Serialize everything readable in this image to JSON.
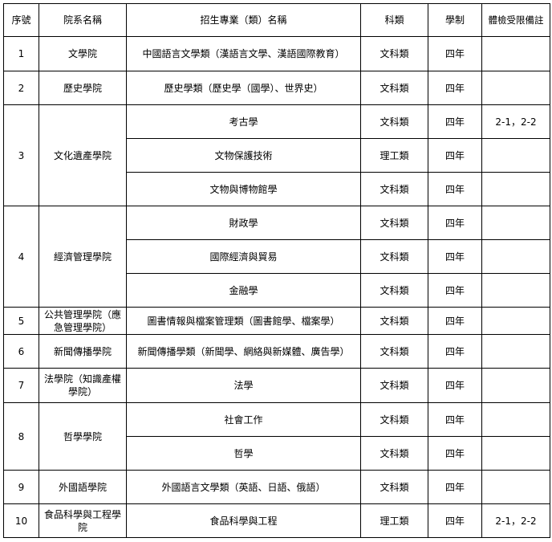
{
  "headers": [
    "序號",
    "院系名稱",
    "招生專業（類）名稱",
    "科類",
    "學制",
    "體檢受限備註"
  ],
  "groups": [
    {
      "no": "1",
      "school": "文學院",
      "majors": [
        {
          "name": "中國語言文學類（漢語言文學、漢語國際教育）",
          "category": "文科類",
          "duration": "四年",
          "note": ""
        }
      ]
    },
    {
      "no": "2",
      "school": "歷史學院",
      "majors": [
        {
          "name": "歷史學類（歷史學（國學）、世界史）",
          "category": "文科類",
          "duration": "四年",
          "note": ""
        }
      ]
    },
    {
      "no": "3",
      "school": "文化遺產學院",
      "majors": [
        {
          "name": "考古學",
          "category": "文科類",
          "duration": "四年",
          "note": "2-1，2-2"
        },
        {
          "name": "文物保護技術",
          "category": "理工類",
          "duration": "四年",
          "note": ""
        },
        {
          "name": "文物與博物館學",
          "category": "文科類",
          "duration": "四年",
          "note": ""
        }
      ]
    },
    {
      "no": "4",
      "school": "經濟管理學院",
      "majors": [
        {
          "name": "財政學",
          "category": "文科類",
          "duration": "四年",
          "note": ""
        },
        {
          "name": "國際經濟與貿易",
          "category": "文科類",
          "duration": "四年",
          "note": ""
        },
        {
          "name": "金融學",
          "category": "文科類",
          "duration": "四年",
          "note": ""
        }
      ]
    },
    {
      "no": "5",
      "school": "公共管理學院（應急管理學院）",
      "majors": [
        {
          "name": "圖書情報與檔案管理類（圖書館學、檔案學）",
          "category": "文科類",
          "duration": "四年",
          "note": ""
        }
      ]
    },
    {
      "no": "6",
      "school": "新聞傳播學院",
      "majors": [
        {
          "name": "新聞傳播學類（新聞學、網絡與新媒體、廣告學）",
          "category": "文科類",
          "duration": "四年",
          "note": ""
        }
      ]
    },
    {
      "no": "7",
      "school": "法學院（知識產權學院）",
      "majors": [
        {
          "name": "法學",
          "category": "文科類",
          "duration": "四年",
          "note": ""
        }
      ]
    },
    {
      "no": "8",
      "school": "哲學學院",
      "majors": [
        {
          "name": "社會工作",
          "category": "文科類",
          "duration": "四年",
          "note": ""
        },
        {
          "name": "哲學",
          "category": "文科類",
          "duration": "四年",
          "note": ""
        }
      ]
    },
    {
      "no": "9",
      "school": "外國語學院",
      "majors": [
        {
          "name": "外國語言文學類（英語、日語、俄語）",
          "category": "文科類",
          "duration": "四年",
          "note": ""
        }
      ]
    },
    {
      "no": "10",
      "school": "食品科學與工程學院",
      "majors": [
        {
          "name": "食品科學與工程",
          "category": "理工類",
          "duration": "四年",
          "note": "2-1，2-2"
        }
      ]
    }
  ]
}
